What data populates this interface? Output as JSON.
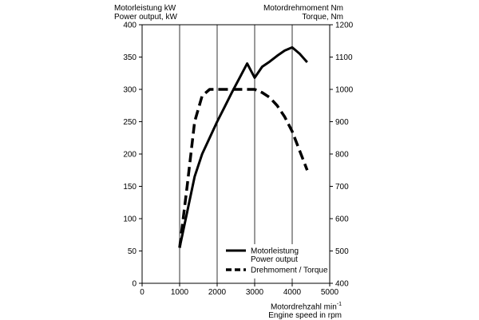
{
  "labels": {
    "left_line1": "Motorleistung kW",
    "left_line2": "Power output, kW",
    "right_line1": "Motordrehmoment Nm",
    "right_line2": "Torque, Nm",
    "bottom_line1": "Motordrehzahl min",
    "bottom_sup": "-1",
    "bottom_line2": "Engine speed in rpm"
  },
  "chart_data": {
    "type": "line",
    "x_axis": {
      "label": "Motordrehzahl min-1 / Engine speed in rpm",
      "range": [
        0,
        5000
      ],
      "ticks": [
        0,
        1000,
        2000,
        3000,
        4000,
        5000
      ]
    },
    "y_left": {
      "label": "Motorleistung kW / Power output, kW",
      "range": [
        0,
        400
      ],
      "ticks": [
        0,
        50,
        100,
        150,
        200,
        250,
        300,
        350,
        400
      ]
    },
    "y_right": {
      "label": "Motordrehmoment Nm / Torque, Nm",
      "range": [
        400,
        1200
      ],
      "ticks": [
        400,
        500,
        600,
        700,
        800,
        900,
        1000,
        1100,
        1200
      ]
    },
    "grid": "vertical",
    "legend_position": "bottom-right",
    "series": [
      {
        "name": "Motorleistung Power output",
        "axis": "left",
        "style": "solid",
        "points": [
          [
            1000,
            55
          ],
          [
            1200,
            110
          ],
          [
            1400,
            165
          ],
          [
            1600,
            200
          ],
          [
            1800,
            225
          ],
          [
            2000,
            250
          ],
          [
            2200,
            273
          ],
          [
            2400,
            296
          ],
          [
            2600,
            318
          ],
          [
            2800,
            340
          ],
          [
            3000,
            318
          ],
          [
            3200,
            335
          ],
          [
            3400,
            343
          ],
          [
            3600,
            352
          ],
          [
            3800,
            360
          ],
          [
            4000,
            365
          ],
          [
            4200,
            355
          ],
          [
            4400,
            342
          ]
        ]
      },
      {
        "name": "Drehmoment / Torque",
        "axis": "right",
        "style": "dashed",
        "points": [
          [
            1000,
            510
          ],
          [
            1200,
            700
          ],
          [
            1400,
            900
          ],
          [
            1600,
            980
          ],
          [
            1800,
            1000
          ],
          [
            2000,
            1000
          ],
          [
            2200,
            1000
          ],
          [
            2400,
            1000
          ],
          [
            2600,
            1000
          ],
          [
            2800,
            1000
          ],
          [
            3000,
            1000
          ],
          [
            3200,
            990
          ],
          [
            3400,
            975
          ],
          [
            3600,
            950
          ],
          [
            3800,
            915
          ],
          [
            4000,
            870
          ],
          [
            4200,
            810
          ],
          [
            4400,
            750
          ]
        ]
      }
    ],
    "legend": [
      {
        "line1": "Motorleistung",
        "line2": "Power output",
        "style": "solid"
      },
      {
        "line1": "Drehmoment / Torque",
        "line2": "",
        "style": "dashed"
      }
    ]
  }
}
